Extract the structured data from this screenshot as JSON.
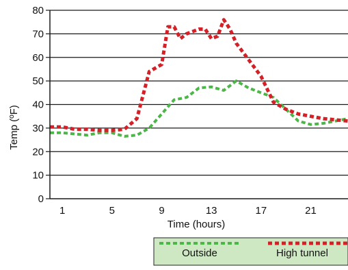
{
  "chart_data": {
    "type": "line",
    "xlabel": "Time (hours)",
    "ylabel": "Temp (ºF)",
    "xlim": [
      0,
      24
    ],
    "ylim": [
      0,
      80
    ],
    "x_ticks": [
      1,
      5,
      9,
      13,
      17,
      21
    ],
    "y_ticks": [
      0,
      10,
      20,
      30,
      40,
      50,
      60,
      70,
      80
    ],
    "grid": "horizontal",
    "legend_position": "bottom-right",
    "series": [
      {
        "name": "Outside",
        "color": "#4cb648",
        "x": [
          0,
          1,
          2,
          3,
          4,
          5,
          6,
          7,
          8,
          9,
          10,
          11,
          12,
          13,
          14,
          15,
          16,
          17,
          18,
          19,
          20,
          21,
          22,
          23,
          24
        ],
        "values": [
          28,
          28,
          27.5,
          27,
          28,
          28,
          26.5,
          27,
          30,
          36,
          42,
          43,
          47,
          47.5,
          46,
          50,
          47,
          45,
          43,
          38,
          33,
          31.5,
          32,
          33,
          34
        ]
      },
      {
        "name": "High tunnel",
        "color": "#d42027",
        "x": [
          0,
          1,
          2,
          3,
          4,
          5,
          6,
          7,
          8,
          9,
          9.5,
          10,
          10.5,
          11,
          12,
          12.5,
          13,
          13.5,
          14,
          14.5,
          15,
          16,
          17,
          18,
          19,
          20,
          21,
          22,
          23,
          24
        ],
        "values": [
          30.5,
          30.5,
          29.5,
          29.5,
          29,
          29,
          29.5,
          34,
          54,
          57,
          73,
          73,
          68,
          70,
          72,
          72,
          68,
          69,
          76,
          72,
          66,
          59,
          52,
          41,
          38,
          36,
          35,
          34,
          33.5,
          33
        ]
      }
    ]
  }
}
